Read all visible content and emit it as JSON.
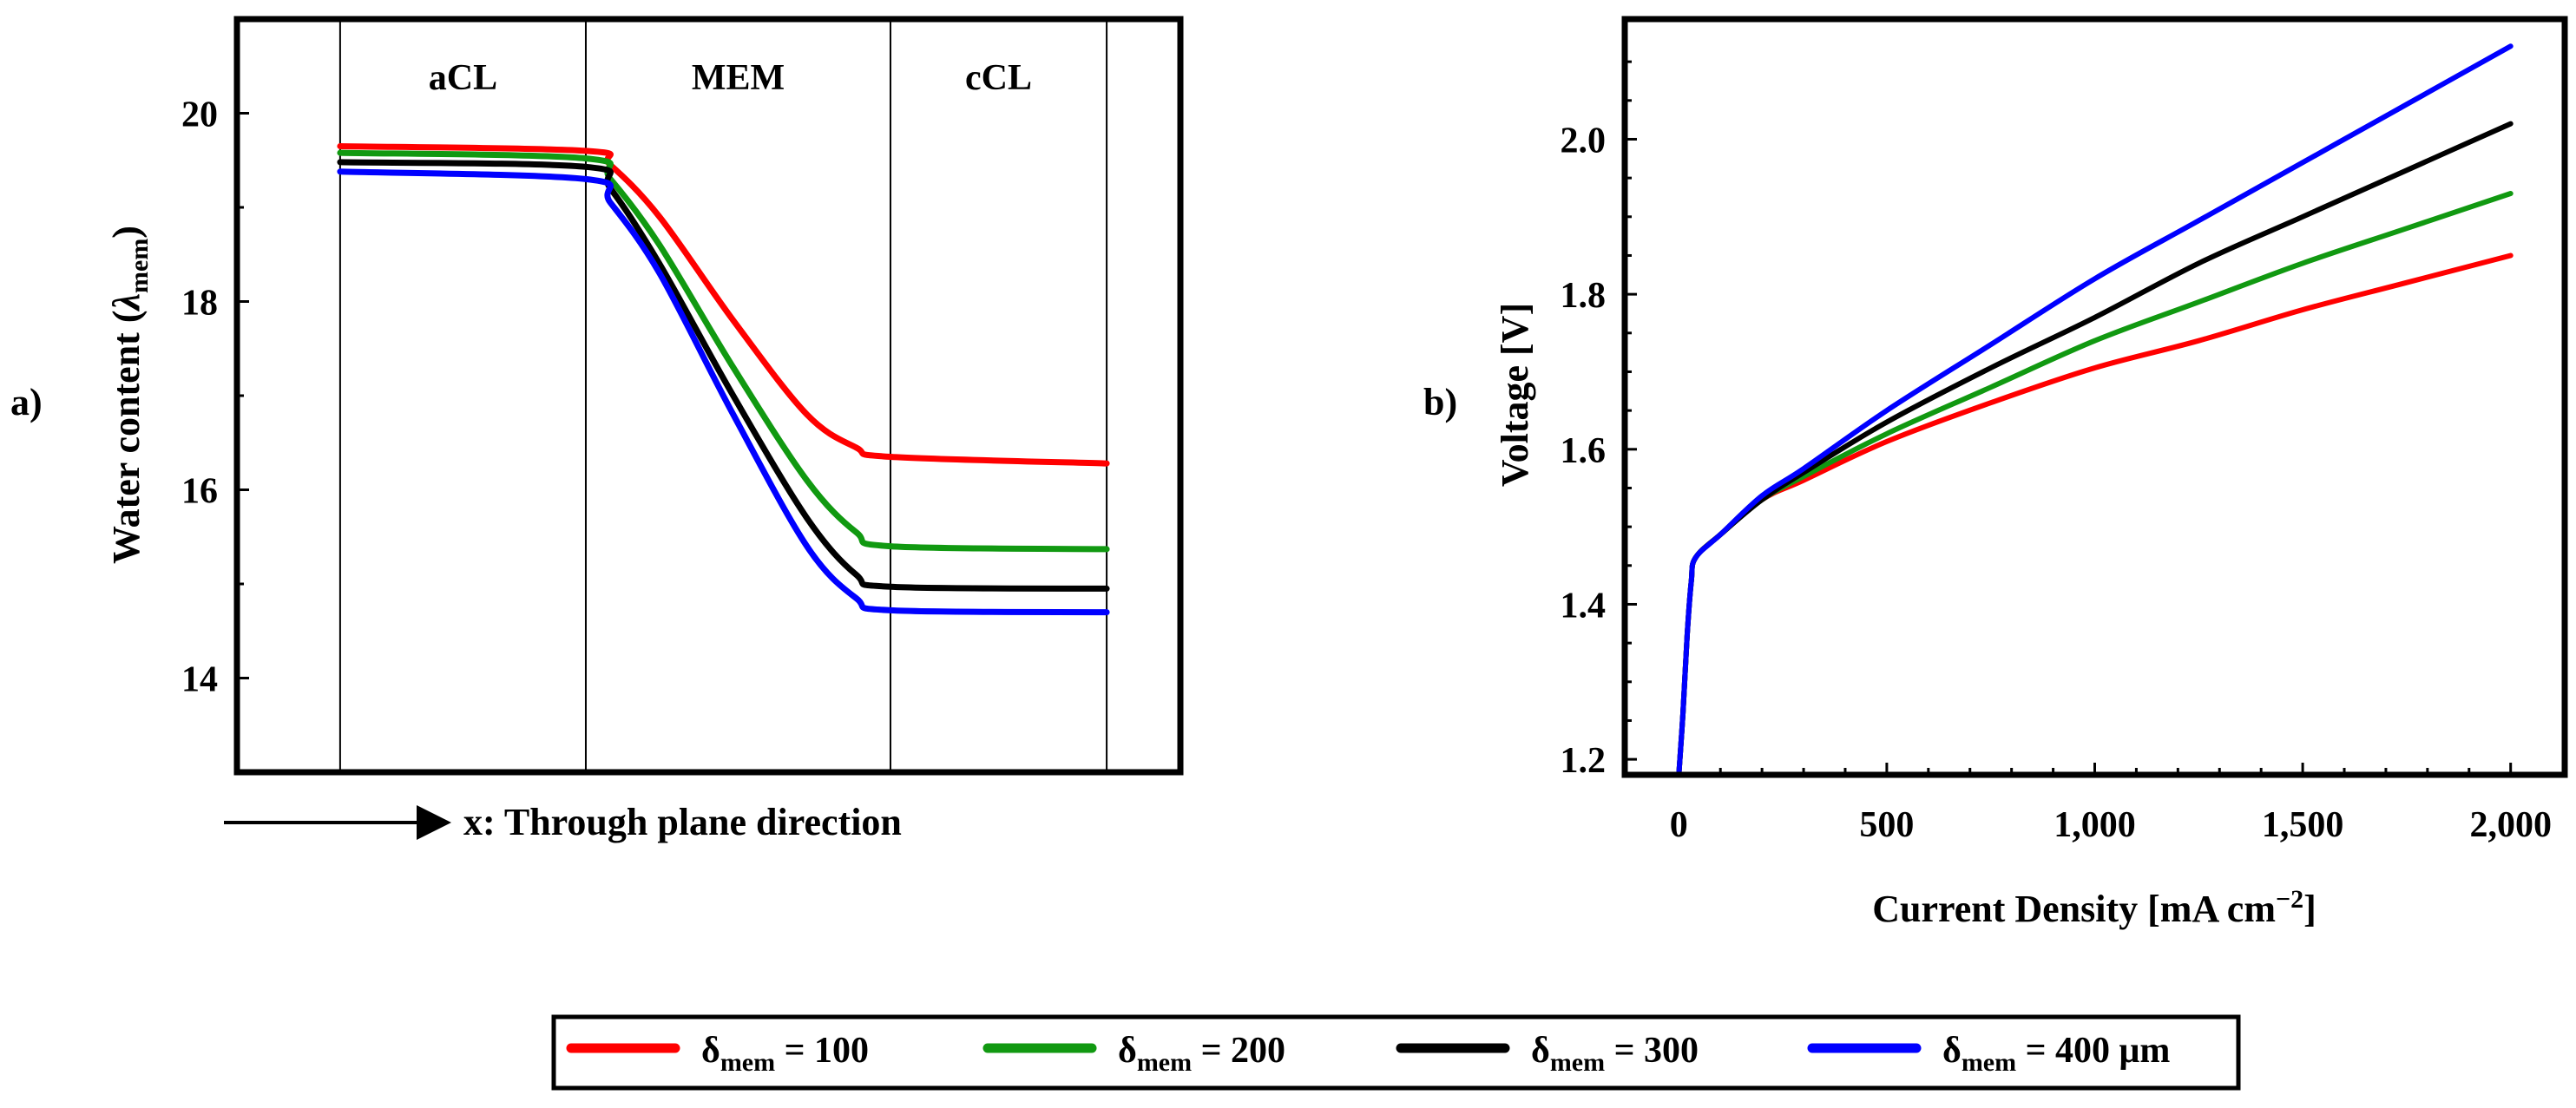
{
  "colors": {
    "red": "#ff0000",
    "green": "#119911",
    "black": "#000000",
    "blue": "#0000ff"
  },
  "panel_a": {
    "label": "a)",
    "regions": [
      "aCL",
      "MEM",
      "cCL"
    ],
    "ylabel_main": "Water content (",
    "ylabel_lambda": "λ",
    "ylabel_sub": "mem",
    "ylabel_close": ")",
    "xlabel": "x: Through plane direction"
  },
  "panel_b": {
    "label": "b)",
    "ylabel": "Voltage [V]",
    "xlabel_main": "Current Density [mA cm",
    "xlabel_sup": "−2",
    "xlabel_close": "]"
  },
  "legend": {
    "symbol": "δ",
    "sub": "mem",
    "entries": [
      {
        "text": " = 100",
        "color": "#ff0000"
      },
      {
        "text": " = 200",
        "color": "#119911"
      },
      {
        "text": " = 300",
        "color": "#000000"
      },
      {
        "text": " = 400 μm",
        "color": "#0000ff"
      }
    ]
  },
  "chart_data": [
    {
      "type": "line",
      "title": "",
      "xlabel": "x: Through plane direction",
      "ylabel": "Water content (λmem)",
      "ylim": [
        13,
        21
      ],
      "xlim": [
        -0.42,
        3.42
      ],
      "yticks": [
        "14",
        "16",
        "18",
        "20"
      ],
      "region_boundaries": [
        0,
        1,
        2.24,
        3.12
      ],
      "regions": [
        "aCL",
        "MEM",
        "cCL"
      ],
      "grid": false,
      "series": [
        {
          "name": "δmem = 100",
          "color": "#ff0000",
          "x": [
            0,
            1,
            1.1,
            1.3,
            1.6,
            1.9,
            2.1,
            2.24,
            3.12
          ],
          "y": [
            19.65,
            19.6,
            19.45,
            18.9,
            17.8,
            16.8,
            16.45,
            16.35,
            16.28
          ]
        },
        {
          "name": "δmem = 200",
          "color": "#119911",
          "x": [
            0,
            1,
            1.1,
            1.3,
            1.6,
            1.9,
            2.1,
            2.24,
            3.12
          ],
          "y": [
            19.58,
            19.52,
            19.3,
            18.6,
            17.3,
            16.1,
            15.55,
            15.4,
            15.37
          ]
        },
        {
          "name": "δmem = 300",
          "color": "#000000",
          "x": [
            0,
            1,
            1.1,
            1.3,
            1.6,
            1.9,
            2.1,
            2.24,
            3.12
          ],
          "y": [
            19.48,
            19.43,
            19.2,
            18.4,
            17.0,
            15.7,
            15.1,
            14.97,
            14.95
          ]
        },
        {
          "name": "δmem = 400 μm",
          "color": "#0000ff",
          "x": [
            0,
            1,
            1.1,
            1.3,
            1.6,
            1.9,
            2.1,
            2.24,
            3.12
          ],
          "y": [
            19.38,
            19.3,
            19.05,
            18.3,
            16.8,
            15.4,
            14.85,
            14.72,
            14.7
          ]
        }
      ]
    },
    {
      "type": "line",
      "title": "",
      "xlabel": "Current Density [mA cm−2]",
      "ylabel": "Voltage [V]",
      "xlim": [
        -130,
        2130
      ],
      "ylim": [
        1.18,
        2.155
      ],
      "xticks": [
        0,
        500,
        1000,
        1500,
        2000
      ],
      "xtick_labels": [
        "0",
        "500",
        "1,000",
        "1,500",
        "2,000"
      ],
      "yticks": [
        1.2,
        1.4,
        1.6,
        1.8,
        2.0
      ],
      "ytick_labels": [
        "1.2",
        "1.4",
        "1.6",
        "1.8",
        "2.0"
      ],
      "grid": false,
      "series": [
        {
          "name": "δmem = 100",
          "color": "#ff0000",
          "x": [
            0,
            10,
            20,
            30,
            40,
            100,
            200,
            300,
            500,
            750,
            1000,
            1250,
            1500,
            1750,
            2000
          ],
          "y": [
            1.18,
            1.26,
            1.36,
            1.43,
            1.46,
            1.49,
            1.535,
            1.56,
            1.61,
            1.66,
            1.705,
            1.74,
            1.78,
            1.815,
            1.85
          ]
        },
        {
          "name": "δmem = 200",
          "color": "#119911",
          "x": [
            0,
            10,
            20,
            30,
            40,
            100,
            200,
            300,
            500,
            750,
            1000,
            1250,
            1500,
            1750,
            2000
          ],
          "y": [
            1.18,
            1.26,
            1.36,
            1.43,
            1.46,
            1.49,
            1.535,
            1.565,
            1.62,
            1.68,
            1.74,
            1.79,
            1.84,
            1.885,
            1.93
          ]
        },
        {
          "name": "δmem = 300",
          "color": "#000000",
          "x": [
            0,
            10,
            20,
            30,
            40,
            100,
            200,
            300,
            500,
            750,
            1000,
            1250,
            1500,
            1750,
            2000
          ],
          "y": [
            1.18,
            1.26,
            1.36,
            1.43,
            1.46,
            1.49,
            1.535,
            1.57,
            1.635,
            1.705,
            1.77,
            1.84,
            1.9,
            1.96,
            2.02
          ]
        },
        {
          "name": "δmem = 400 μm",
          "color": "#0000ff",
          "x": [
            0,
            10,
            20,
            30,
            40,
            100,
            200,
            300,
            500,
            750,
            1000,
            1250,
            1500,
            1750,
            2000
          ],
          "y": [
            1.18,
            1.26,
            1.36,
            1.43,
            1.46,
            1.49,
            1.54,
            1.575,
            1.65,
            1.735,
            1.82,
            1.895,
            1.97,
            2.045,
            2.12
          ]
        }
      ]
    }
  ]
}
